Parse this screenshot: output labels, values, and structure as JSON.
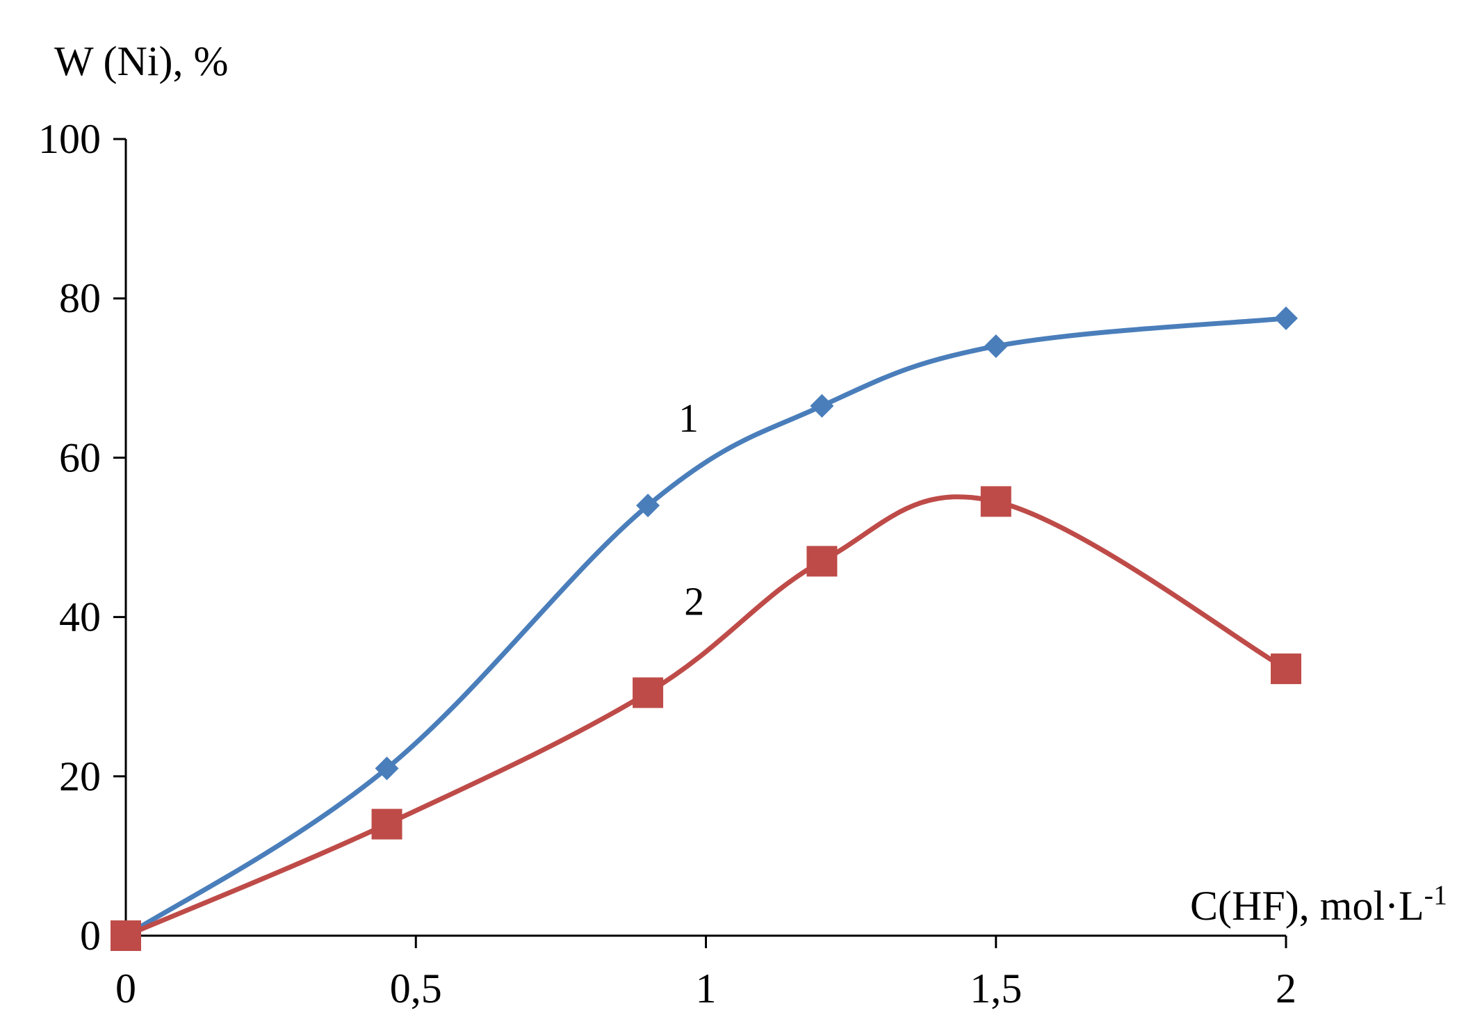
{
  "chart_data": {
    "type": "line",
    "title": "",
    "xlabel": "C(HF), mol·L",
    "xlabel_superscript": "-1",
    "ylabel": "W (Ni), %",
    "xlim": [
      0,
      2
    ],
    "ylim": [
      0,
      100
    ],
    "x_ticks": [
      0,
      0.5,
      1,
      1.5,
      2
    ],
    "x_tick_labels": [
      "0",
      "0,5",
      "1",
      "1,5",
      "2"
    ],
    "y_ticks": [
      0,
      20,
      40,
      60,
      80,
      100
    ],
    "y_tick_labels": [
      "0",
      "20",
      "40",
      "60",
      "80",
      "100"
    ],
    "grid": false,
    "legend": "none",
    "series": [
      {
        "label": "1",
        "color": "#4a7ebb",
        "marker": "diamond",
        "x": [
          0,
          0.45,
          0.9,
          1.2,
          1.5,
          2
        ],
        "y": [
          0,
          21,
          54,
          66.5,
          74,
          77.5
        ]
      },
      {
        "label": "2",
        "color": "#be4b48",
        "marker": "square",
        "x": [
          0,
          0.45,
          0.9,
          1.2,
          1.5,
          2
        ],
        "y": [
          0,
          14,
          30.5,
          47,
          54.5,
          33.5
        ]
      }
    ]
  }
}
